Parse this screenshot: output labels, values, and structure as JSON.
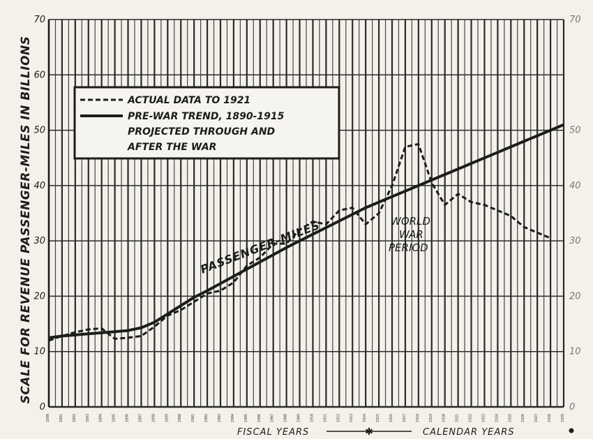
{
  "chart_data": {
    "type": "line",
    "ylabel": "SCALE FOR REVENUE PASSENGER-MILES IN BILLIONS",
    "ylim": [
      0,
      70
    ],
    "yticks": [
      "0",
      "10",
      "20",
      "30",
      "40",
      "50",
      "60",
      "70"
    ],
    "grid": true,
    "x": [
      1890,
      1891,
      1892,
      1893,
      1894,
      1895,
      1896,
      1897,
      1898,
      1899,
      1900,
      1901,
      1902,
      1903,
      1904,
      1905,
      1906,
      1907,
      1908,
      1909,
      1910,
      1911,
      1912,
      1913,
      1914,
      1915,
      1916,
      1917,
      1918,
      1919,
      1920,
      1921,
      1922,
      1923,
      1924,
      1925,
      1926,
      1927,
      1928,
      1929
    ],
    "x_tick_labels": [
      "1890",
      "1891",
      "1892",
      "1893",
      "1894",
      "1895",
      "1896",
      "1897",
      "1898",
      "1899",
      "1900",
      "1901",
      "1902",
      "1903",
      "1904",
      "1905",
      "1906",
      "1907",
      "1908",
      "1909",
      "1910",
      "1911",
      "1912",
      "1913",
      "1914",
      "1915",
      "1916",
      "1917",
      "1918",
      "1919",
      "1920",
      "1921",
      "1922",
      "1923",
      "1924",
      "1925",
      "1926",
      "1927",
      "1928",
      "1929"
    ],
    "series": [
      {
        "name": "ACTUAL DATA TO 1921",
        "style": "dashed",
        "x": [
          1890,
          1891,
          1892,
          1893,
          1894,
          1895,
          1896,
          1897,
          1898,
          1899,
          1900,
          1901,
          1902,
          1903,
          1904,
          1905,
          1906,
          1907,
          1908,
          1909,
          1910,
          1911,
          1912,
          1913,
          1914,
          1915,
          1916,
          1917,
          1918,
          1919,
          1920,
          1921,
          1922,
          1923,
          1924,
          1925,
          1926,
          1927,
          1928
        ],
        "values": [
          12.0,
          12.8,
          13.5,
          14.0,
          14.2,
          12.3,
          12.5,
          12.8,
          14.5,
          16.5,
          17.5,
          19.0,
          20.5,
          21.0,
          22.5,
          25.5,
          27.0,
          29.5,
          29.5,
          32.0,
          33.5,
          33.0,
          35.5,
          36.0,
          33.0,
          35.0,
          40.0,
          47.0,
          47.5,
          40.5,
          36.5,
          38.5,
          37.0,
          36.5,
          35.5,
          34.5,
          32.5,
          31.5,
          30.5
        ]
      },
      {
        "name": "PRE-WAR TREND, 1890-1915 PROJECTED THROUGH AND AFTER THE WAR",
        "style": "solid",
        "x": [
          1890,
          1891,
          1892,
          1893,
          1894,
          1895,
          1896,
          1897,
          1898,
          1899,
          1900,
          1901,
          1902,
          1903,
          1904,
          1905,
          1906,
          1907,
          1908,
          1909,
          1910,
          1911,
          1912,
          1913,
          1914,
          1915,
          1916,
          1917,
          1918,
          1919,
          1920,
          1921,
          1922,
          1923,
          1924,
          1925,
          1926,
          1927,
          1928,
          1929
        ],
        "values": [
          12.5,
          12.8,
          13.0,
          13.2,
          13.4,
          13.6,
          13.8,
          14.3,
          15.3,
          16.8,
          18.3,
          19.8,
          21.0,
          22.3,
          23.6,
          24.9,
          26.2,
          27.5,
          28.8,
          30.0,
          31.2,
          32.4,
          33.6,
          34.8,
          36.0,
          37.0,
          38.0,
          39.0,
          40.0,
          41.0,
          42.0,
          43.0,
          44.0,
          45.0,
          46.0,
          47.0,
          48.0,
          49.0,
          50.0,
          51.0
        ]
      }
    ],
    "legend": {
      "position": "top-left"
    },
    "annotations": [
      "PASSENGER-MILES",
      "WORLD",
      "WAR",
      "PERIOD"
    ],
    "right_axis_ticks": [
      "0",
      "10",
      "20",
      "30",
      "40",
      "50",
      "70"
    ],
    "footer": {
      "left": "FISCAL YEARS",
      "right": "CALENDAR YEARS"
    }
  },
  "legend": {
    "line1": "ACTUAL DATA TO 1921",
    "line2": "PRE-WAR TREND, 1890-1915",
    "line3": "PROJECTED THROUGH AND",
    "line4": "AFTER THE WAR"
  },
  "colors": {
    "ink": "#1c1c1c",
    "paper": "#f3f1ea",
    "grid": "#2a2a2a"
  }
}
